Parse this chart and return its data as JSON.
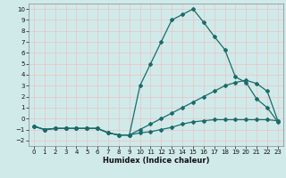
{
  "xlabel": "Humidex (Indice chaleur)",
  "ylabel": "",
  "xlim": [
    -0.5,
    23.5
  ],
  "ylim": [
    -2.5,
    10.5
  ],
  "xticks": [
    0,
    1,
    2,
    3,
    4,
    5,
    6,
    7,
    8,
    9,
    10,
    11,
    12,
    13,
    14,
    15,
    16,
    17,
    18,
    19,
    20,
    21,
    22,
    23
  ],
  "yticks": [
    -2,
    -1,
    0,
    1,
    2,
    3,
    4,
    5,
    6,
    7,
    8,
    9,
    10
  ],
  "background_color": "#d0eaea",
  "grid_color": "#b8d8d8",
  "line_color": "#1a6b6b",
  "line1_x": [
    0,
    1,
    2,
    3,
    4,
    5,
    6,
    7,
    8,
    9,
    10,
    11,
    12,
    13,
    14,
    15,
    16,
    17,
    18,
    19,
    20,
    21,
    22,
    23
  ],
  "line1_y": [
    -0.7,
    -1.0,
    -0.9,
    -0.9,
    -0.9,
    -0.9,
    -0.9,
    -1.3,
    -1.5,
    -1.5,
    3.0,
    5.0,
    7.0,
    9.0,
    9.5,
    10.0,
    8.8,
    7.5,
    6.3,
    3.8,
    3.3,
    1.8,
    1.0,
    -0.3
  ],
  "line2_x": [
    0,
    1,
    2,
    3,
    4,
    5,
    6,
    7,
    8,
    9,
    10,
    11,
    12,
    13,
    14,
    15,
    16,
    17,
    18,
    19,
    20,
    21,
    22,
    23
  ],
  "line2_y": [
    -0.7,
    -1.0,
    -0.9,
    -0.9,
    -0.9,
    -0.9,
    -0.9,
    -1.3,
    -1.5,
    -1.5,
    -1.0,
    -0.5,
    0.0,
    0.5,
    1.0,
    1.5,
    2.0,
    2.5,
    3.0,
    3.3,
    3.5,
    3.2,
    2.5,
    -0.2
  ],
  "line3_x": [
    0,
    1,
    2,
    3,
    4,
    5,
    6,
    7,
    8,
    9,
    10,
    11,
    12,
    13,
    14,
    15,
    16,
    17,
    18,
    19,
    20,
    21,
    22,
    23
  ],
  "line3_y": [
    -0.7,
    -1.0,
    -0.9,
    -0.9,
    -0.9,
    -0.9,
    -0.9,
    -1.3,
    -1.5,
    -1.5,
    -1.3,
    -1.2,
    -1.0,
    -0.8,
    -0.5,
    -0.3,
    -0.2,
    -0.1,
    -0.1,
    -0.1,
    -0.1,
    -0.1,
    -0.1,
    -0.2
  ]
}
